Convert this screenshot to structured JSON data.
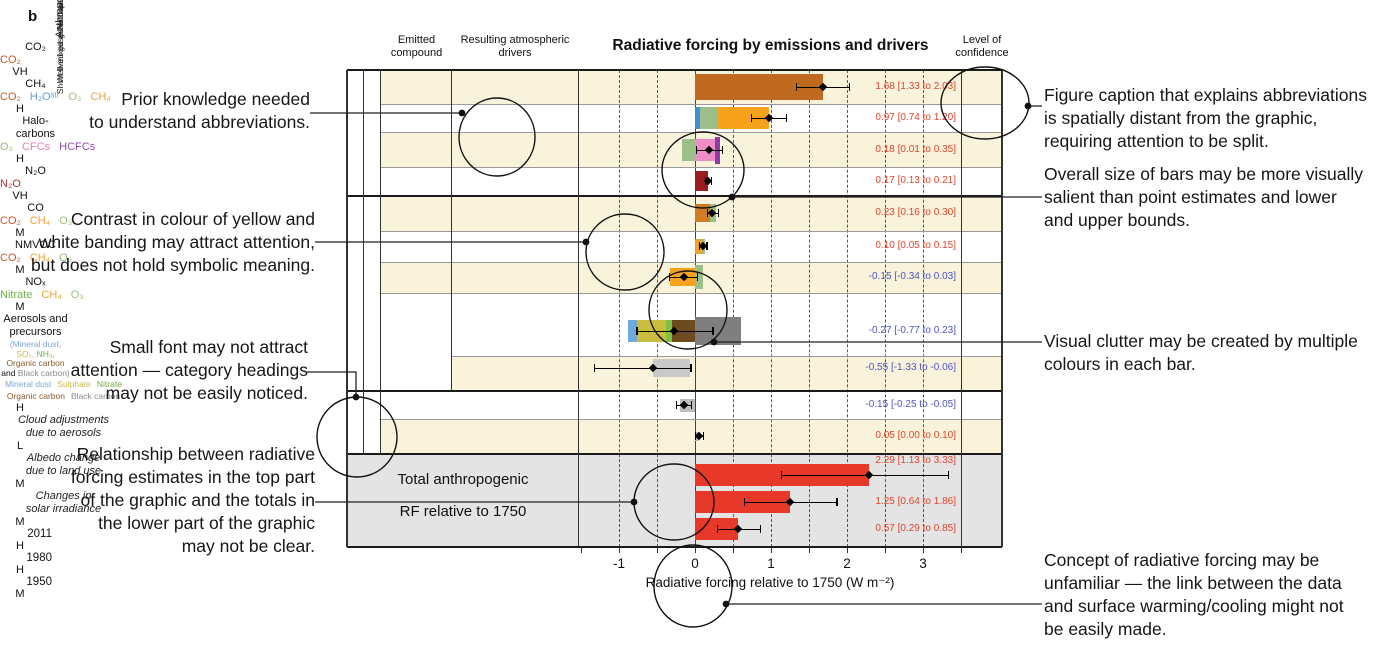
{
  "figure_label": "b",
  "header": {
    "emitted_l1": "Emitted",
    "emitted_l2": "compound",
    "drivers_l1": "Resulting atmospheric",
    "drivers_l2": "drivers",
    "title": "Radiative forcing by emissions and drivers",
    "conf_l1": "Level of",
    "conf_l2": "confidence"
  },
  "groups": {
    "outer_anthropogenic": "Anthropogenic",
    "outer_natural": "Natural",
    "inner_wmgg": "Well-mixed greenhouse gases",
    "inner_slga": "Short lived gases and aerosols"
  },
  "colors": {
    "cream": "#faf3dc",
    "white": "#ffffff",
    "total_bg": "#e4e4e4",
    "value_pos": "#e0452c",
    "value_neg": "#4d55c4",
    "co2_text": "#c55a2a",
    "h2o_text": "#5b9bd5",
    "o3_text": "#9dbd7e",
    "ch4_text": "#f0a23a",
    "cfcs_text": "#e87fc0",
    "hcfcs_text": "#8f4ba8",
    "n2o_text": "#a93226",
    "nitrate_text": "#70ad47",
    "mineral_text": "#7da7d9",
    "sulphate_text": "#c9b94a",
    "organic_text": "#8a5a2b",
    "black_text": "#8c8c8c",
    "co2_bar": "#bf6a1f",
    "h2o_strat": "#3f8fd2",
    "ozone": "#9cbf8a",
    "methane": "#f6a21d",
    "cfc_pink": "#ef8cc8",
    "hcfc_purple": "#8e3ba8",
    "n2o_bar": "#9c1d20",
    "co_bar": "#d07c20",
    "nitrate_green": "#7dc242",
    "dust_blue": "#6fa8dc",
    "sulphate_yellow": "#c9bc3f",
    "organic_brown": "#6e4b1e",
    "black_grey": "#7f7f7f",
    "cloud_grey": "#c9c9c9",
    "land_grey": "#bdbdbd",
    "total_red": "#e8382a"
  },
  "axis": {
    "ticks": [
      -1,
      0,
      1,
      2,
      3
    ],
    "range": [
      -1.5,
      3.5
    ],
    "label": "Radiative forcing relative to 1750 (W m⁻²)"
  },
  "totals_label": {
    "line1": "Total anthropogenic",
    "line2": "RF relative to 1750"
  },
  "chart_data": {
    "type": "bar",
    "xlabel": "Radiative forcing relative to 1750 (W m⁻²)",
    "xlim": [
      -1.5,
      3.5
    ],
    "grid": "dashed vertical every 0.5",
    "rows": [
      {
        "compound_lines": [
          "CO₂"
        ],
        "band": "cream",
        "drivers": [
          {
            "t": "CO₂",
            "c": "co2_text"
          }
        ],
        "segments": [
          {
            "from": 0,
            "to": 1.68,
            "color": "co2_bar",
            "h": 26
          }
        ],
        "estimate": 1.68,
        "lo": 1.33,
        "hi": 2.03,
        "value": "1.68 [1.33 to 2.03]",
        "sign": "pos",
        "confidence": "VH"
      },
      {
        "compound_lines": [
          "CH₄"
        ],
        "band": "white",
        "drivers": [
          {
            "t": "CO₂",
            "c": "co2_text"
          },
          {
            "t": "H₂Oˢᵗʳ",
            "c": "h2o_text"
          },
          {
            "t": "O₃",
            "c": "o3_text"
          },
          {
            "t": "CH₄",
            "c": "ch4_text"
          }
        ],
        "segments": [
          {
            "from": 0,
            "to": 0.06,
            "color": "h2o_strat",
            "h": 22
          },
          {
            "from": 0.06,
            "to": 0.3,
            "color": "ozone",
            "h": 22
          },
          {
            "from": 0.3,
            "to": 0.97,
            "color": "methane",
            "h": 22
          }
        ],
        "estimate": 0.97,
        "lo": 0.74,
        "hi": 1.2,
        "value": "0.97 [0.74 to 1.20]",
        "sign": "pos",
        "confidence": "H"
      },
      {
        "compound_lines": [
          "Halo-",
          "carbons"
        ],
        "band": "cream",
        "drivers": [
          {
            "t": "O₃",
            "c": "o3_text"
          },
          {
            "t": "CFCs",
            "c": "cfcs_text"
          },
          {
            "t": "HCFCs",
            "c": "hcfcs_text"
          }
        ],
        "segments": [
          {
            "from": -0.17,
            "to": 0,
            "color": "ozone",
            "h": 22
          },
          {
            "from": 0,
            "to": 0.26,
            "color": "cfc_pink",
            "h": 22
          },
          {
            "from": 0.26,
            "to": 0.33,
            "color": "hcfc_purple",
            "h": 27
          }
        ],
        "estimate": 0.18,
        "lo": 0.01,
        "hi": 0.35,
        "value": "0.18 [0.01 to 0.35]",
        "sign": "pos",
        "confidence": "H"
      },
      {
        "compound_lines": [
          "N₂O"
        ],
        "band": "white",
        "drivers": [
          {
            "t": "N₂O",
            "c": "n2o_text"
          }
        ],
        "segments": [
          {
            "from": 0,
            "to": 0.17,
            "color": "n2o_bar",
            "h": 20
          }
        ],
        "estimate": 0.17,
        "lo": 0.13,
        "hi": 0.21,
        "value": "0.17 [0.13 to 0.21]",
        "sign": "pos",
        "confidence": "VH"
      },
      {
        "compound_lines": [
          "CO"
        ],
        "band": "cream",
        "drivers": [
          {
            "t": "CO₂",
            "c": "co2_text"
          },
          {
            "t": "CH₄",
            "c": "ch4_text"
          },
          {
            "t": "O₃",
            "c": "o3_text"
          }
        ],
        "segments": [
          {
            "from": 0,
            "to": 0.2,
            "color": "co_bar",
            "h": 18
          },
          {
            "from": 0.2,
            "to": 0.28,
            "color": "ozone",
            "h": 18
          }
        ],
        "estimate": 0.23,
        "lo": 0.16,
        "hi": 0.3,
        "value": "0.23 [0.16 to 0.30]",
        "sign": "pos",
        "confidence": "M"
      },
      {
        "compound_lines": [
          "NMVOC"
        ],
        "band": "white",
        "drivers": [
          {
            "t": "CO₂",
            "c": "co2_text"
          },
          {
            "t": "CH₄",
            "c": "ch4_text"
          },
          {
            "t": "O₃",
            "c": "o3_text"
          }
        ],
        "segments": [
          {
            "from": 0,
            "to": 0.09,
            "color": "methane",
            "h": 15
          },
          {
            "from": 0.09,
            "to": 0.13,
            "color": "ozone",
            "h": 15
          }
        ],
        "estimate": 0.1,
        "lo": 0.05,
        "hi": 0.15,
        "value": "0.10 [0.05 to 0.15]",
        "sign": "pos",
        "confidence": "M"
      },
      {
        "compound_lines": [
          "NOₓ"
        ],
        "band": "cream",
        "drivers": [
          {
            "t": "Nitrate",
            "c": "nitrate_text"
          },
          {
            "t": "CH₄",
            "c": "ch4_text"
          },
          {
            "t": "O₃",
            "c": "o3_text"
          }
        ],
        "segments": [
          {
            "from": -0.33,
            "to": 0,
            "color": "methane",
            "h": 18
          },
          {
            "from": 0,
            "to": 0.11,
            "color": "ozone",
            "h": 24
          }
        ],
        "estimate": -0.15,
        "lo": -0.34,
        "hi": 0.03,
        "value": "-0.15 [-0.34 to 0.03]",
        "sign": "neg",
        "confidence": "M"
      },
      {
        "compound_lines": [
          "Aerosols and",
          "precursors"
        ],
        "band": "white",
        "compound_sub": [
          [
            {
              "t": "(Mineral dust,",
              "c": "mineral_text"
            }
          ],
          [
            {
              "t": "SO₂,",
              "c": "sulphate_text"
            },
            {
              "t": " NH₃,",
              "c": "nitrate_text"
            }
          ],
          [
            {
              "t": "Organic carbon",
              "c": "organic_text"
            }
          ],
          [
            {
              "t": "and ",
              "c": ""
            },
            {
              "t": "Black carbon)",
              "c": "black_text"
            }
          ]
        ],
        "drivers2": [
          [
            {
              "t": "Mineral dust",
              "c": "mineral_text"
            },
            {
              "t": "Sulphate",
              "c": "sulphate_text"
            },
            {
              "t": "Nitrate",
              "c": "nitrate_text"
            }
          ],
          [
            {
              "t": "Organic carbon",
              "c": "organic_text"
            },
            {
              "t": "Black carbon",
              "c": "black_text"
            }
          ]
        ],
        "segments": [
          {
            "from": -0.88,
            "to": -0.76,
            "color": "dust_blue",
            "h": 22
          },
          {
            "from": -0.76,
            "to": -0.38,
            "color": "sulphate_yellow",
            "h": 22
          },
          {
            "from": -0.38,
            "to": -0.3,
            "color": "nitrate_green",
            "h": 22
          },
          {
            "from": -0.3,
            "to": 0,
            "color": "organic_brown",
            "h": 22
          },
          {
            "from": 0,
            "to": 0.6,
            "color": "black_grey",
            "h": 28
          }
        ],
        "estimate": -0.27,
        "lo": -0.77,
        "hi": 0.23,
        "value": "-0.27 [-0.77 to 0.23]",
        "sign": "neg",
        "confidence": "H"
      },
      {
        "compound_lines": [],
        "band": "cream",
        "drivers_italic": [
          "Cloud adjustments",
          "due to aerosols"
        ],
        "segments": [
          {
            "from": -0.55,
            "to": -0.06,
            "color": "cloud_grey",
            "h": 18
          }
        ],
        "estimate": -0.55,
        "lo": -1.33,
        "hi": -0.06,
        "value": "-0.55 [-1.33 to -0.06]",
        "sign": "neg",
        "confidence": "L"
      },
      {
        "compound_lines": [],
        "band": "white",
        "drivers_italic": [
          "Albedo change",
          "due to land use"
        ],
        "segments": [
          {
            "from": -0.2,
            "to": 0,
            "color": "land_grey",
            "h": 13
          }
        ],
        "estimate": -0.15,
        "lo": -0.25,
        "hi": -0.05,
        "value": "-0.15 [-0.25 to -0.05]",
        "sign": "neg",
        "confidence": "M"
      },
      {
        "compound_lines": [],
        "band": "cream",
        "drivers_italic": [
          "Changes in",
          "solar irradiance"
        ],
        "segments": [
          {
            "from": 0,
            "to": 0.05,
            "color": "land_grey",
            "h": 9
          }
        ],
        "estimate": 0.05,
        "lo": 0.0,
        "hi": 0.1,
        "value": "0.05 [0.00 to 0.10]",
        "sign": "pos",
        "confidence": "M"
      }
    ],
    "totals": [
      {
        "year": "2011",
        "estimate": 2.29,
        "lo": 1.13,
        "hi": 3.33,
        "value": "2.29 [1.13 to 3.33]",
        "sign": "pos",
        "confidence": "H"
      },
      {
        "year": "1980",
        "estimate": 1.25,
        "lo": 0.64,
        "hi": 1.86,
        "value": "1.25 [0.64 to 1.86]",
        "sign": "pos",
        "confidence": "H"
      },
      {
        "year": "1950",
        "estimate": 0.57,
        "lo": 0.29,
        "hi": 0.85,
        "value": "0.57 [0.29 to 0.85]",
        "sign": "pos",
        "confidence": "M"
      }
    ]
  },
  "annotations": {
    "left": [
      {
        "lines": [
          "Prior knowledge needed",
          "to understand abbreviations."
        ]
      },
      {
        "lines": [
          "Contrast in colour of yellow and",
          "white banding may attract attention,",
          "but does not hold symbolic meaning."
        ]
      },
      {
        "lines": [
          "Small font may not attract",
          "attention — category headings",
          "may not be easily noticed."
        ]
      },
      {
        "lines": [
          "Relationship between radiative",
          "forcing estimates in the top part",
          "of the graphic and the totals in",
          "the lower part of the graphic",
          "may not be clear."
        ]
      }
    ],
    "right": [
      {
        "lines": [
          "Figure caption that explains abbreviations",
          "is spatially distant from the graphic,",
          "requiring attention to be split."
        ]
      },
      {
        "lines": [
          "Overall size of bars may be more visually",
          "salient than point estimates and lower",
          "and upper bounds."
        ]
      },
      {
        "lines": [
          "Visual clutter may be created by multiple",
          "colours in each bar."
        ]
      },
      {
        "lines": [
          "Concept of radiative forcing may be",
          "unfamiliar — the link between the data",
          "and surface warming/cooling might not",
          "be easily made."
        ]
      }
    ]
  }
}
